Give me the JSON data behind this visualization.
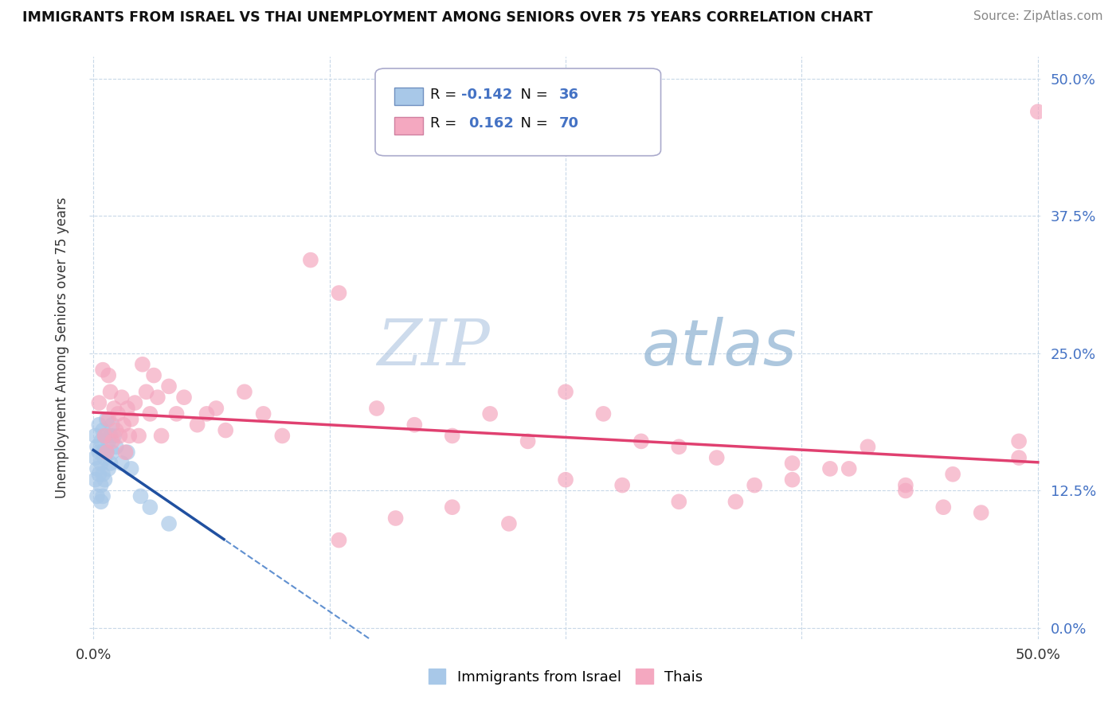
{
  "title": "IMMIGRANTS FROM ISRAEL VS THAI UNEMPLOYMENT AMONG SENIORS OVER 75 YEARS CORRELATION CHART",
  "source": "Source: ZipAtlas.com",
  "ylabel": "Unemployment Among Seniors over 75 years",
  "x_tick_labels": [
    "0.0%",
    "",
    "",
    "",
    "50.0%"
  ],
  "x_tick_values": [
    0,
    0.125,
    0.25,
    0.375,
    0.5
  ],
  "y_tick_labels_right": [
    "0.0%",
    "12.5%",
    "25.0%",
    "37.5%",
    "50.0%"
  ],
  "y_tick_values": [
    0,
    0.125,
    0.25,
    0.375,
    0.5
  ],
  "xlim": [
    -0.002,
    0.502
  ],
  "ylim": [
    -0.01,
    0.52
  ],
  "legend1_label": "Immigrants from Israel",
  "legend2_label": "Thais",
  "r1": "-0.142",
  "n1": "36",
  "r2": "0.162",
  "n2": "70",
  "color_israel": "#a8c8e8",
  "color_thai": "#f4a8c0",
  "trendline_israel_solid_color": "#2050a0",
  "trendline_israel_dash_color": "#6090d0",
  "trendline_thai_color": "#e04070",
  "watermark_zip": "ZIP",
  "watermark_atlas": "atlas",
  "background_color": "#ffffff",
  "grid_color": "#c8d8e8",
  "right_label_color": "#4472c4",
  "israel_x": [
    0.001,
    0.001,
    0.001,
    0.002,
    0.002,
    0.002,
    0.003,
    0.003,
    0.003,
    0.004,
    0.004,
    0.004,
    0.004,
    0.005,
    0.005,
    0.005,
    0.005,
    0.006,
    0.006,
    0.006,
    0.007,
    0.007,
    0.008,
    0.008,
    0.009,
    0.009,
    0.01,
    0.01,
    0.011,
    0.012,
    0.015,
    0.018,
    0.02,
    0.025,
    0.03,
    0.04
  ],
  "israel_y": [
    0.175,
    0.155,
    0.135,
    0.165,
    0.145,
    0.12,
    0.185,
    0.16,
    0.14,
    0.17,
    0.15,
    0.13,
    0.115,
    0.18,
    0.16,
    0.14,
    0.12,
    0.175,
    0.155,
    0.135,
    0.19,
    0.16,
    0.17,
    0.145,
    0.175,
    0.15,
    0.185,
    0.16,
    0.175,
    0.165,
    0.15,
    0.16,
    0.145,
    0.12,
    0.11,
    0.095
  ],
  "thai_x": [
    0.003,
    0.005,
    0.006,
    0.007,
    0.008,
    0.008,
    0.009,
    0.01,
    0.011,
    0.012,
    0.013,
    0.014,
    0.015,
    0.016,
    0.017,
    0.018,
    0.019,
    0.02,
    0.022,
    0.024,
    0.026,
    0.028,
    0.03,
    0.032,
    0.034,
    0.036,
    0.04,
    0.044,
    0.048,
    0.055,
    0.06,
    0.065,
    0.07,
    0.08,
    0.09,
    0.1,
    0.115,
    0.13,
    0.15,
    0.17,
    0.19,
    0.21,
    0.23,
    0.25,
    0.27,
    0.29,
    0.31,
    0.33,
    0.35,
    0.37,
    0.39,
    0.41,
    0.43,
    0.45,
    0.47,
    0.49,
    0.5,
    0.49,
    0.455,
    0.43,
    0.4,
    0.37,
    0.34,
    0.31,
    0.28,
    0.25,
    0.22,
    0.19,
    0.16,
    0.13
  ],
  "thai_y": [
    0.205,
    0.235,
    0.175,
    0.16,
    0.23,
    0.19,
    0.215,
    0.17,
    0.2,
    0.18,
    0.195,
    0.175,
    0.21,
    0.185,
    0.16,
    0.2,
    0.175,
    0.19,
    0.205,
    0.175,
    0.24,
    0.215,
    0.195,
    0.23,
    0.21,
    0.175,
    0.22,
    0.195,
    0.21,
    0.185,
    0.195,
    0.2,
    0.18,
    0.215,
    0.195,
    0.175,
    0.335,
    0.305,
    0.2,
    0.185,
    0.175,
    0.195,
    0.17,
    0.215,
    0.195,
    0.17,
    0.165,
    0.155,
    0.13,
    0.15,
    0.145,
    0.165,
    0.13,
    0.11,
    0.105,
    0.17,
    0.47,
    0.155,
    0.14,
    0.125,
    0.145,
    0.135,
    0.115,
    0.115,
    0.13,
    0.135,
    0.095,
    0.11,
    0.1,
    0.08
  ]
}
